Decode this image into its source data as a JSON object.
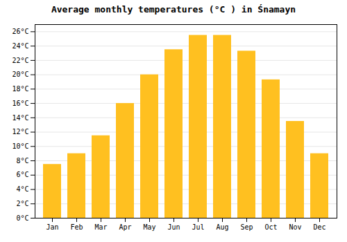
{
  "chart_data": {
    "type": "bar",
    "title": "Average monthly temperatures (°C ) in Śnamayn",
    "categories": [
      "Jan",
      "Feb",
      "Mar",
      "Apr",
      "May",
      "Jun",
      "Jul",
      "Aug",
      "Sep",
      "Oct",
      "Nov",
      "Dec"
    ],
    "values": [
      7.5,
      9.0,
      11.5,
      16.0,
      20.0,
      23.5,
      25.5,
      25.5,
      23.3,
      19.3,
      13.5,
      9.0
    ],
    "color": "#FFC020",
    "ylim": [
      0,
      27
    ],
    "yticks": [
      {
        "value": 0,
        "label": "0°C"
      },
      {
        "value": 2,
        "label": "2°C"
      },
      {
        "value": 4,
        "label": "4°C"
      },
      {
        "value": 6,
        "label": "6°C"
      },
      {
        "value": 8,
        "label": "8°C"
      },
      {
        "value": 10,
        "label": "10°C"
      },
      {
        "value": 12,
        "label": "12°C"
      },
      {
        "value": 14,
        "label": "14°C"
      },
      {
        "value": 16,
        "label": "16°C"
      },
      {
        "value": 18,
        "label": "18°C"
      },
      {
        "value": 20,
        "label": "20°C"
      },
      {
        "value": 22,
        "label": "22°C"
      },
      {
        "value": 24,
        "label": "24°C"
      },
      {
        "value": 26,
        "label": "26°C"
      }
    ],
    "grid": true
  }
}
